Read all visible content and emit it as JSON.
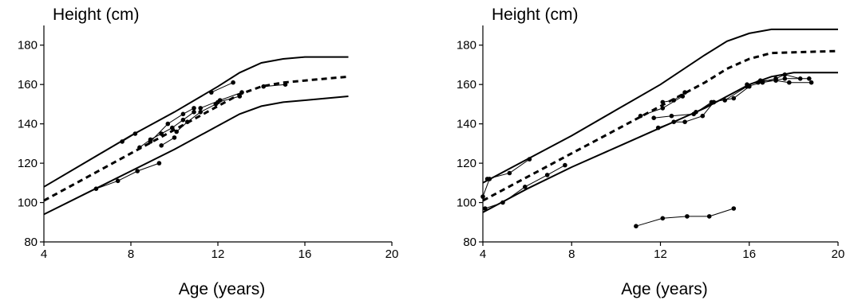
{
  "chart_data": [
    {
      "type": "line",
      "title": "",
      "xlabel": "Age (years)",
      "ylabel": "Height (cm)",
      "xlim": [
        4,
        20
      ],
      "ylim": [
        80,
        190
      ],
      "xticks": [
        4,
        8,
        12,
        16,
        20
      ],
      "yticks": [
        80,
        100,
        120,
        140,
        160,
        180
      ],
      "grid": false,
      "legend": "none",
      "reference_curves": [
        {
          "style": "solid",
          "points": [
            [
              4,
              108
            ],
            [
              6,
              121
            ],
            [
              8,
              134
            ],
            [
              10,
              146
            ],
            [
              12,
              159
            ],
            [
              13,
              166
            ],
            [
              14,
              171
            ],
            [
              15,
              173
            ],
            [
              16,
              174
            ],
            [
              18,
              174
            ]
          ]
        },
        {
          "style": "dashed",
          "points": [
            [
              4,
              101
            ],
            [
              6,
              113
            ],
            [
              8,
              125
            ],
            [
              10,
              137
            ],
            [
              12,
              149
            ],
            [
              13,
              155
            ],
            [
              14,
              159
            ],
            [
              15,
              161
            ],
            [
              16,
              162
            ],
            [
              18,
              164
            ]
          ]
        },
        {
          "style": "solid",
          "points": [
            [
              4,
              94
            ],
            [
              6,
              105
            ],
            [
              8,
              116
            ],
            [
              10,
              127
            ],
            [
              12,
              139
            ],
            [
              13,
              145
            ],
            [
              14,
              149
            ],
            [
              15,
              151
            ],
            [
              16,
              152
            ],
            [
              18,
              154
            ]
          ]
        }
      ],
      "series": [
        {
          "values": [
            [
              6.4,
              107
            ],
            [
              7.4,
              111
            ],
            [
              8.3,
              116
            ],
            [
              9.3,
              120
            ]
          ]
        },
        {
          "values": [
            [
              7.6,
              131
            ],
            [
              8.2,
              135
            ]
          ]
        },
        {
          "values": [
            [
              8.4,
              128
            ],
            [
              8.9,
              132
            ],
            [
              9.4,
              135
            ],
            [
              9.9,
              138
            ],
            [
              10.4,
              142
            ],
            [
              10.9,
              146
            ]
          ]
        },
        {
          "values": [
            [
              8.9,
              131
            ],
            [
              9.7,
              140
            ],
            [
              10.4,
              145
            ],
            [
              10.9,
              148
            ]
          ]
        },
        {
          "values": [
            [
              9.4,
              129
            ],
            [
              10,
              133
            ]
          ]
        },
        {
          "values": [
            [
              10.1,
              136
            ],
            [
              10.6,
              141
            ],
            [
              11.2,
              146
            ],
            [
              11.9,
              150
            ]
          ]
        },
        {
          "values": [
            [
              11.7,
              156
            ],
            [
              12.7,
              161
            ]
          ]
        },
        {
          "values": [
            [
              11.2,
              148
            ],
            [
              12.1,
              152
            ],
            [
              13.1,
              156
            ]
          ]
        },
        {
          "values": [
            [
              12,
              151
            ],
            [
              13,
              154
            ]
          ]
        },
        {
          "values": [
            [
              14.1,
              159
            ],
            [
              15.1,
              160
            ]
          ]
        }
      ]
    },
    {
      "type": "line",
      "title": "",
      "xlabel": "Age (years)",
      "ylabel": "Height (cm)",
      "xlim": [
        4,
        20
      ],
      "ylim": [
        80,
        190
      ],
      "xticks": [
        4,
        8,
        12,
        16,
        20
      ],
      "yticks": [
        80,
        100,
        120,
        140,
        160,
        180
      ],
      "grid": false,
      "legend": "none",
      "reference_curves": [
        {
          "style": "solid",
          "points": [
            [
              4,
              110
            ],
            [
              6,
              122
            ],
            [
              8,
              134
            ],
            [
              10,
              147
            ],
            [
              12,
              160
            ],
            [
              14,
              175
            ],
            [
              15,
              182
            ],
            [
              16,
              186
            ],
            [
              17,
              188
            ],
            [
              20,
              188
            ]
          ]
        },
        {
          "style": "dashed",
          "points": [
            [
              4,
              101
            ],
            [
              6,
              113
            ],
            [
              8,
              125
            ],
            [
              10,
              137
            ],
            [
              12,
              149
            ],
            [
              14,
              161
            ],
            [
              15,
              168
            ],
            [
              16,
              173
            ],
            [
              17,
              176
            ],
            [
              20,
              177
            ]
          ]
        },
        {
          "style": "solid",
          "points": [
            [
              4,
              95
            ],
            [
              6,
              107
            ],
            [
              8,
              118
            ],
            [
              10,
              128
            ],
            [
              12,
              138
            ],
            [
              14,
              148
            ],
            [
              15,
              154
            ],
            [
              16,
              160
            ],
            [
              17,
              164
            ],
            [
              18,
              166
            ],
            [
              20,
              166
            ]
          ]
        }
      ],
      "series": [
        {
          "values": [
            [
              4,
              103
            ],
            [
              4.3,
              112
            ]
          ]
        },
        {
          "values": [
            [
              4.2,
              112
            ],
            [
              5.2,
              115
            ],
            [
              6.1,
              122
            ]
          ]
        },
        {
          "values": [
            [
              4.1,
              97
            ],
            [
              4.9,
              100
            ],
            [
              5.9,
              108
            ],
            [
              6.9,
              114
            ],
            [
              7.7,
              119
            ]
          ]
        },
        {
          "values": [
            [
              10.9,
              88
            ],
            [
              12.1,
              92
            ],
            [
              13.2,
              93
            ],
            [
              14.2,
              93
            ],
            [
              15.3,
              97
            ]
          ]
        },
        {
          "values": [
            [
              11.1,
              144
            ],
            [
              12.1,
              148
            ],
            [
              13,
              154
            ]
          ]
        },
        {
          "values": [
            [
              11.7,
              143
            ],
            [
              12.5,
              144
            ],
            [
              13.5,
              145
            ],
            [
              14.3,
              151
            ],
            [
              15.3,
              153
            ],
            [
              16,
              159
            ]
          ]
        },
        {
          "values": [
            [
              11.9,
              138
            ],
            [
              12.6,
              141
            ],
            [
              13.1,
              141
            ],
            [
              13.9,
              144
            ],
            [
              14.4,
              151
            ]
          ]
        },
        {
          "values": [
            [
              12.1,
              151
            ],
            [
              12.6,
              152
            ],
            [
              13.1,
              156
            ]
          ]
        },
        {
          "values": [
            [
              13.6,
              146
            ],
            [
              14.4,
              151
            ]
          ]
        },
        {
          "values": [
            [
              14.9,
              152
            ],
            [
              15.9,
              159
            ],
            [
              16.6,
              161
            ],
            [
              17.6,
              163
            ],
            [
              18.7,
              163
            ]
          ]
        },
        {
          "values": [
            [
              15.9,
              160
            ],
            [
              16.4,
              161
            ],
            [
              17.2,
              163
            ],
            [
              17.6,
              165
            ],
            [
              18.3,
              163
            ]
          ]
        },
        {
          "values": [
            [
              16.5,
              162
            ],
            [
              17.2,
              162
            ],
            [
              17.8,
              161
            ],
            [
              18.8,
              161
            ]
          ]
        }
      ]
    }
  ]
}
